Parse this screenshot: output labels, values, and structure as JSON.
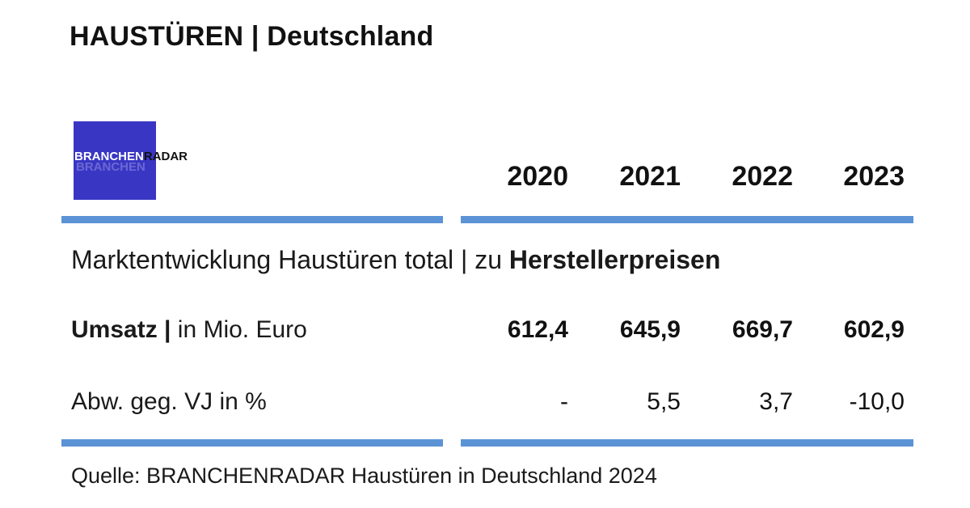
{
  "title": "HAUSTÜREN | Deutschland",
  "logo": {
    "brand": "BRANCHEN",
    "suffix": "RADAR",
    "colors": {
      "box": "#3a36c4",
      "brand_text": "#ffffff",
      "suffix_text": "#111111"
    }
  },
  "colors": {
    "rule": "#5b93d6"
  },
  "chart_data": {
    "type": "table",
    "years": [
      "2020",
      "2021",
      "2022",
      "2023"
    ],
    "subtitle_prefix": "Marktentwicklung Haustüren total | zu ",
    "subtitle_bold": "Herstellerpreisen",
    "rows": [
      {
        "label_bold": "Umsatz |",
        "label_rest": " in Mio. Euro",
        "values": [
          "612,4",
          "645,9",
          "669,7",
          "602,9"
        ]
      },
      {
        "label_bold": "",
        "label_rest": "Abw. geg. VJ in %",
        "values": [
          "-",
          "5,5",
          "3,7",
          "-10,0"
        ]
      }
    ],
    "source": "Quelle: BRANCHENRADAR Haustüren in Deutschland 2024"
  }
}
